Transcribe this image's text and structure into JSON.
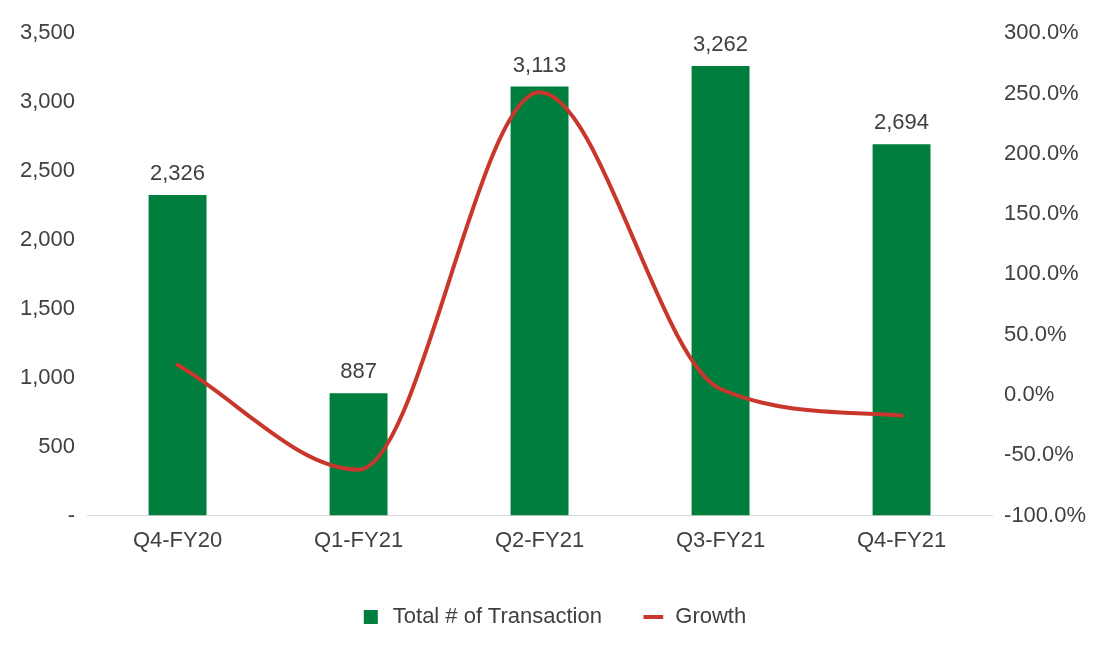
{
  "chart_data": {
    "type": "bar",
    "categories": [
      "Q4-FY20",
      "Q1-FY21",
      "Q2-FY21",
      "Q3-FY21",
      "Q4-FY21"
    ],
    "series": [
      {
        "name": "Total # of Transaction",
        "color": "#007e3e",
        "values": [
          2326,
          887,
          3113,
          3262,
          2694
        ],
        "value_labels": [
          "2,326",
          "887",
          "3,113",
          "3,262",
          "2,694"
        ]
      },
      {
        "name": "Growth",
        "type": "line",
        "axis": "y2",
        "color": "#c9372c",
        "values": [
          25,
          -62,
          251,
          5,
          -17
        ]
      }
    ],
    "ylim": [
      0,
      3500
    ],
    "yticks": [
      {
        "value": 0,
        "label": "-"
      },
      {
        "value": 500,
        "label": "500"
      },
      {
        "value": 1000,
        "label": "1,000"
      },
      {
        "value": 1500,
        "label": "1,500"
      },
      {
        "value": 2000,
        "label": "2,000"
      },
      {
        "value": 2500,
        "label": "2,500"
      },
      {
        "value": 3000,
        "label": "3,000"
      },
      {
        "value": 3500,
        "label": "3,500"
      }
    ],
    "y2lim": [
      -100,
      300
    ],
    "y2ticks": [
      {
        "value": -100,
        "label": "-100.0%"
      },
      {
        "value": -50,
        "label": "-50.0%"
      },
      {
        "value": 0,
        "label": "0.0%"
      },
      {
        "value": 50,
        "label": "50.0%"
      },
      {
        "value": 100,
        "label": "100.0%"
      },
      {
        "value": 150,
        "label": "150.0%"
      },
      {
        "value": 200,
        "label": "200.0%"
      },
      {
        "value": 250,
        "label": "250.0%"
      },
      {
        "value": 300,
        "label": "300.0%"
      }
    ],
    "grid": false,
    "legend": "bottom",
    "line_style": "solid"
  }
}
